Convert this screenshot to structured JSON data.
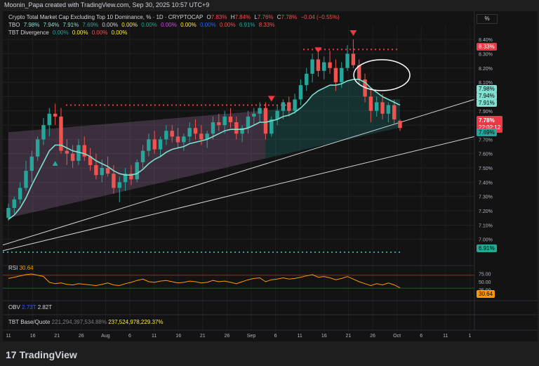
{
  "attribution": "Moonin_Papa created with TradingView.com, Sep 30, 2025 10:57 UTC+9",
  "legend": {
    "title": "Crypto Total Market Cap Excluding Top 10 Dominance, % · 1D · CRYPTOCAP",
    "o_label": "O",
    "o_value": "7.83%",
    "h_label": "H",
    "h_value": "7.84%",
    "l_label": "L",
    "l_value": "7.76%",
    "c_label": "C",
    "c_value": "7.78%",
    "change": "−0.04 (−0.55%)",
    "tbo_label": "TBO",
    "tbo_values": [
      "7.98%",
      "7.94%",
      "7.91%",
      "7.69%",
      "0.00%",
      "0.00%",
      "0.00%",
      "0.00%",
      "0.00%",
      "0.00%",
      "0.00%",
      "6.91%",
      "8.33%"
    ],
    "div_label": "TBT Divergence",
    "div_values": [
      "0.00%",
      "0.00%",
      "0.00%",
      "0.00%"
    ]
  },
  "pct_button": "%",
  "price_axis": [
    "8.40%",
    "8.30%",
    "8.20%",
    "8.10%",
    "8.00%",
    "7.90%",
    "7.80%",
    "7.70%",
    "7.60%",
    "7.50%",
    "7.40%",
    "7.30%",
    "7.20%",
    "7.10%",
    "7.00%"
  ],
  "tags": {
    "red_top": "8.33%",
    "tbo_a": "7.98%",
    "tbo_b": "7.94%",
    "tbo_c": "7.91%",
    "price": "7.78%",
    "countdown": "22:02:12",
    "tbo_d": "7.69%",
    "green_bottom": "6.91%"
  },
  "rsi": {
    "label": "RSI",
    "value": "30.64",
    "axis": [
      "75.00",
      "50.00",
      "25.00"
    ],
    "tag": "30.64"
  },
  "obv": {
    "label": "OBV",
    "v1": "2.73T",
    "v2": "2.82T"
  },
  "tbt": {
    "label": "TBT Base/Quote",
    "v1": "221,294,397,534.88%",
    "v2": "237,524,978,229.37%"
  },
  "time_axis": [
    "11",
    "16",
    "21",
    "26",
    "Aug",
    "6",
    "11",
    "16",
    "21",
    "26",
    "Sep",
    "6",
    "11",
    "16",
    "21",
    "26",
    "Oct",
    "6",
    "11",
    "1"
  ],
  "logo": "TradingView",
  "colors": {
    "up": "#26a69a",
    "down": "#ef5350",
    "tbo_fast": "#80e0d0",
    "rsi": "#ff9800",
    "accent_red": "#f23645",
    "accent_green": "#22ab94"
  },
  "chart_data": {
    "type": "candlestick",
    "title": "Crypto Total Market Cap Excluding Top 10 Dominance, % · 1D · CRYPTOCAP",
    "ylim": [
      6.9,
      8.45
    ],
    "y_unit": "%",
    "x_ticks": [
      "11",
      "16",
      "21",
      "26",
      "Aug",
      "6",
      "11",
      "16",
      "21",
      "26",
      "Sep",
      "6",
      "11",
      "16",
      "21",
      "26",
      "Oct",
      "6",
      "11",
      "1"
    ],
    "ohlc": [
      [
        7.15,
        7.25,
        7.13,
        7.22
      ],
      [
        7.22,
        7.3,
        7.18,
        7.28
      ],
      [
        7.28,
        7.4,
        7.25,
        7.36
      ],
      [
        7.36,
        7.55,
        7.34,
        7.48
      ],
      [
        7.48,
        7.62,
        7.4,
        7.58
      ],
      [
        7.58,
        7.72,
        7.55,
        7.7
      ],
      [
        7.7,
        7.85,
        7.66,
        7.8
      ],
      [
        7.8,
        7.92,
        7.72,
        7.88
      ],
      [
        7.88,
        7.95,
        7.8,
        7.86
      ],
      [
        7.86,
        7.92,
        7.6,
        7.62
      ],
      [
        7.62,
        7.7,
        7.52,
        7.6
      ],
      [
        7.6,
        7.66,
        7.5,
        7.55
      ],
      [
        7.55,
        7.7,
        7.52,
        7.66
      ],
      [
        7.66,
        7.72,
        7.55,
        7.58
      ],
      [
        7.58,
        7.64,
        7.48,
        7.52
      ],
      [
        7.52,
        7.6,
        7.42,
        7.45
      ],
      [
        7.45,
        7.56,
        7.4,
        7.5
      ],
      [
        7.5,
        7.58,
        7.44,
        7.46
      ],
      [
        7.46,
        7.52,
        7.32,
        7.36
      ],
      [
        7.36,
        7.44,
        7.26,
        7.4
      ],
      [
        7.4,
        7.5,
        7.34,
        7.46
      ],
      [
        7.46,
        7.52,
        7.38,
        7.42
      ],
      [
        7.42,
        7.56,
        7.4,
        7.54
      ],
      [
        7.54,
        7.66,
        7.5,
        7.62
      ],
      [
        7.62,
        7.74,
        7.58,
        7.7
      ],
      [
        7.7,
        7.76,
        7.6,
        7.63
      ],
      [
        7.63,
        7.72,
        7.58,
        7.7
      ],
      [
        7.7,
        7.8,
        7.66,
        7.76
      ],
      [
        7.76,
        7.8,
        7.68,
        7.72
      ],
      [
        7.72,
        7.78,
        7.64,
        7.68
      ],
      [
        7.68,
        7.74,
        7.62,
        7.72
      ],
      [
        7.72,
        7.82,
        7.68,
        7.78
      ],
      [
        7.78,
        7.84,
        7.7,
        7.74
      ],
      [
        7.74,
        7.8,
        7.66,
        7.7
      ],
      [
        7.7,
        7.76,
        7.64,
        7.74
      ],
      [
        7.74,
        7.86,
        7.7,
        7.82
      ],
      [
        7.82,
        7.88,
        7.76,
        7.8
      ],
      [
        7.8,
        7.9,
        7.74,
        7.86
      ],
      [
        7.86,
        7.92,
        7.78,
        7.82
      ],
      [
        7.82,
        7.86,
        7.7,
        7.74
      ],
      [
        7.74,
        7.8,
        7.68,
        7.78
      ],
      [
        7.78,
        7.9,
        7.74,
        7.86
      ],
      [
        7.86,
        7.92,
        7.8,
        7.88
      ],
      [
        7.88,
        7.96,
        7.82,
        7.92
      ],
      [
        7.92,
        7.96,
        7.7,
        7.74
      ],
      [
        7.74,
        7.86,
        7.72,
        7.84
      ],
      [
        7.84,
        7.94,
        7.8,
        7.9
      ],
      [
        7.9,
        7.98,
        7.84,
        7.96
      ],
      [
        7.96,
        8.0,
        7.86,
        7.9
      ],
      [
        7.9,
        8.02,
        7.88,
        7.98
      ],
      [
        7.98,
        8.12,
        7.94,
        8.08
      ],
      [
        8.08,
        8.2,
        8.04,
        8.16
      ],
      [
        8.16,
        8.3,
        8.1,
        8.26
      ],
      [
        8.26,
        8.34,
        8.14,
        8.18
      ],
      [
        8.18,
        8.28,
        8.12,
        8.24
      ],
      [
        8.24,
        8.32,
        8.16,
        8.2
      ],
      [
        8.2,
        8.26,
        8.04,
        8.1
      ],
      [
        8.1,
        8.24,
        8.06,
        8.2
      ],
      [
        8.2,
        8.36,
        8.18,
        8.3
      ],
      [
        8.3,
        8.4,
        8.2,
        8.22
      ],
      [
        8.22,
        8.26,
        8.08,
        8.12
      ],
      [
        8.12,
        8.16,
        7.96,
        8.0
      ],
      [
        8.0,
        8.06,
        7.82,
        7.9
      ],
      [
        7.9,
        8.0,
        7.86,
        7.96
      ],
      [
        7.96,
        8.02,
        7.84,
        7.88
      ],
      [
        7.88,
        7.96,
        7.82,
        7.94
      ],
      [
        7.94,
        7.98,
        7.8,
        7.84
      ],
      [
        7.83,
        7.84,
        7.76,
        7.78
      ]
    ],
    "tbo_fast": [
      7.14,
      7.17,
      7.22,
      7.29,
      7.38,
      7.46,
      7.54,
      7.62,
      7.66,
      7.66,
      7.64,
      7.62,
      7.61,
      7.6,
      7.58,
      7.55,
      7.53,
      7.51,
      7.48,
      7.46,
      7.45,
      7.45,
      7.46,
      7.49,
      7.53,
      7.56,
      7.58,
      7.61,
      7.63,
      7.64,
      7.65,
      7.67,
      7.68,
      7.69,
      7.7,
      7.72,
      7.74,
      7.76,
      7.77,
      7.77,
      7.77,
      7.78,
      7.8,
      7.82,
      7.82,
      7.83,
      7.84,
      7.86,
      7.87,
      7.89,
      7.92,
      7.96,
      8.01,
      8.04,
      8.06,
      8.08,
      8.08,
      8.09,
      8.11,
      8.12,
      8.12,
      8.1,
      8.06,
      8.03,
      8.0,
      7.98,
      7.96,
      7.94
    ],
    "levels": {
      "red_dotted_top": 8.33,
      "red_dotted_mid": 7.94,
      "green_dotted_bottom": 6.91
    },
    "rsi_values": [
      60,
      64,
      68,
      72,
      74,
      70,
      66,
      48,
      44,
      46,
      42,
      40,
      44,
      42,
      40,
      38,
      42,
      46,
      40,
      38,
      44,
      48,
      54,
      58,
      50,
      48,
      52,
      54,
      50,
      46,
      48,
      52,
      50,
      46,
      48,
      54,
      50,
      52,
      48,
      44,
      50,
      56,
      60,
      62,
      50,
      56,
      58,
      62,
      58,
      60,
      64,
      68,
      72,
      64,
      66,
      62,
      56,
      60,
      66,
      58,
      50,
      44,
      38,
      44,
      40,
      46,
      40,
      31
    ],
    "rsi_levels": [
      70,
      30
    ]
  }
}
